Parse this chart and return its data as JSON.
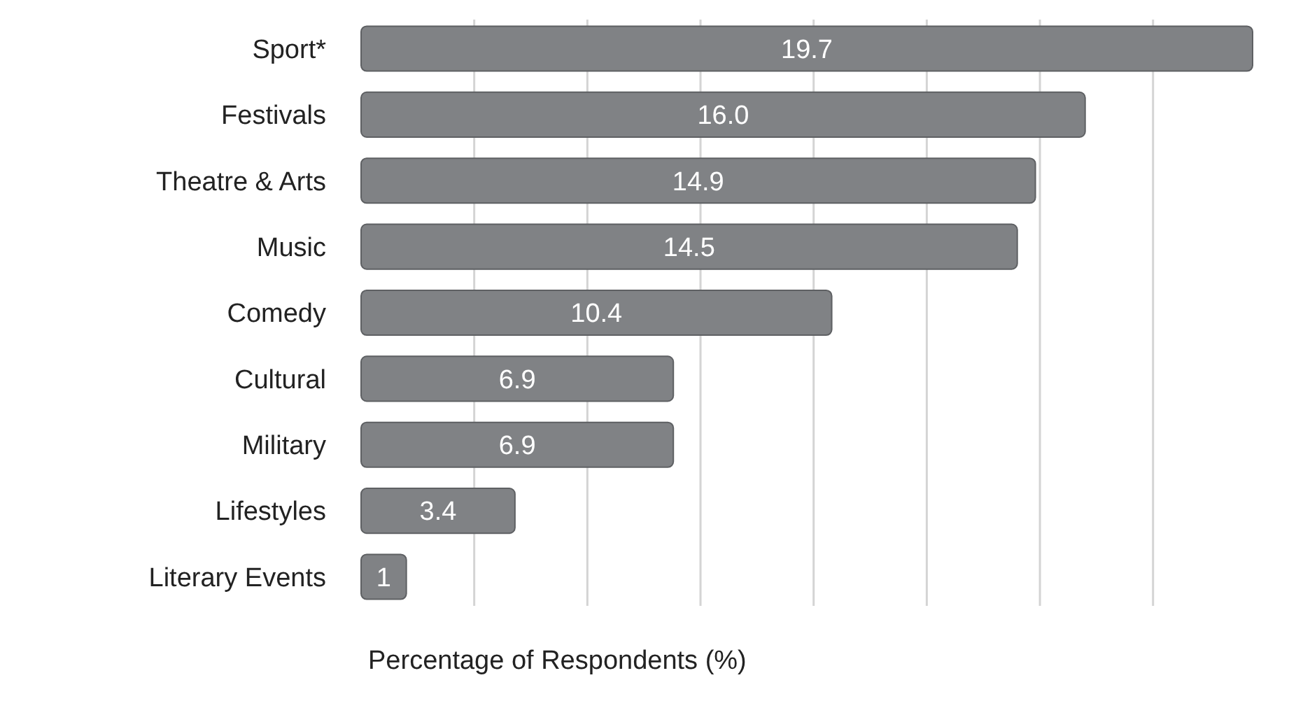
{
  "chart_data": {
    "type": "bar",
    "orientation": "horizontal",
    "xlabel": "Percentage of Respondents (%)",
    "categories": [
      "Sport*",
      "Festivals",
      "Theatre & Arts",
      "Music",
      "Comedy",
      "Cultural",
      "Military",
      "Lifestyles",
      "Literary Events"
    ],
    "values": [
      19.7,
      16.0,
      14.9,
      14.5,
      10.4,
      6.9,
      6.9,
      3.4,
      1
    ],
    "value_labels": [
      "19.7",
      "16.0",
      "14.9",
      "14.5",
      "10.4",
      "6.9",
      "6.9",
      "3.4",
      "1"
    ],
    "color": "#808285",
    "xticks": [
      {
        "value": 2.5,
        "label": null
      },
      {
        "value": 5,
        "label": null
      },
      {
        "value": 7.5,
        "label": null
      },
      {
        "value": 10,
        "label": null
      },
      {
        "value": 12.5,
        "label": null
      },
      {
        "value": 15,
        "label": null
      },
      {
        "value": 17.5,
        "label": null
      }
    ],
    "grid": "x"
  }
}
